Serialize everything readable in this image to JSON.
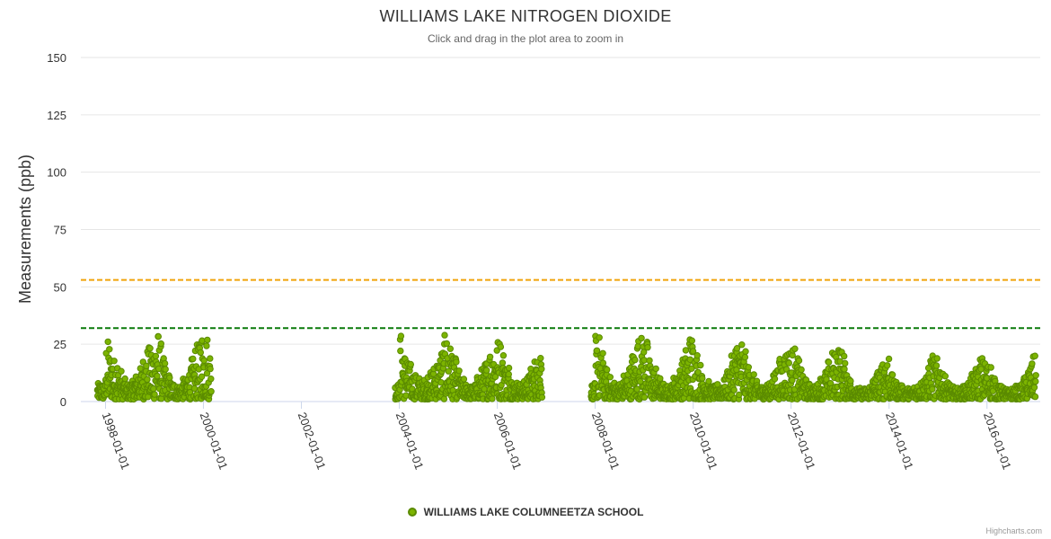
{
  "chart_data": {
    "type": "scatter",
    "title": "WILLIAMS LAKE NITROGEN DIOXIDE",
    "subtitle": "Click and drag in the plot area to zoom in",
    "ylabel": "Measurements (ppb)",
    "xlabel": "",
    "ylim": [
      0,
      150
    ],
    "xlim": [
      "1997-07-01",
      "2017-02-01"
    ],
    "y_ticks": [
      0,
      25,
      50,
      75,
      100,
      125,
      150
    ],
    "x_ticks": [
      "1998-01-01",
      "2000-01-01",
      "2002-01-01",
      "2004-01-01",
      "2006-01-01",
      "2008-01-01",
      "2010-01-01",
      "2012-01-01",
      "2014-01-01",
      "2016-01-01"
    ],
    "grid": true,
    "legend_position": "bottom-center",
    "reference_lines": [
      {
        "value": 53,
        "color": "#f0a30a",
        "style": "dashed"
      },
      {
        "value": 32,
        "color": "#0a7a0a",
        "style": "dashed"
      }
    ],
    "series": [
      {
        "name": "WILLIAMS LAKE COLUMNEETZA SCHOOL",
        "color": "#7cb400",
        "stroke": "#5a8a00",
        "segments": [
          {
            "start": "1997-11-01",
            "end": "2000-03-01"
          },
          {
            "start": "2003-12-01",
            "end": "2006-12-01"
          },
          {
            "start": "2007-12-01",
            "end": "2017-01-01"
          }
        ],
        "monthly_peaks": [
          [
            "1998-01",
            27
          ],
          [
            "1998-02",
            22
          ],
          [
            "1998-03",
            19
          ],
          [
            "1998-04",
            14
          ],
          [
            "1998-05",
            10
          ],
          [
            "1998-06",
            8
          ],
          [
            "1998-07",
            9
          ],
          [
            "1998-08",
            12
          ],
          [
            "1998-09",
            15
          ],
          [
            "1998-10",
            20
          ],
          [
            "1998-11",
            24
          ],
          [
            "1998-12",
            26
          ],
          [
            "1999-01",
            31
          ],
          [
            "1999-02",
            26
          ],
          [
            "1999-03",
            19
          ],
          [
            "1999-04",
            12
          ],
          [
            "1999-05",
            9
          ],
          [
            "1999-06",
            7
          ],
          [
            "1999-07",
            8
          ],
          [
            "1999-08",
            10
          ],
          [
            "1999-09",
            14
          ],
          [
            "1999-10",
            19
          ],
          [
            "1999-11",
            25
          ],
          [
            "1999-12",
            32
          ],
          [
            "2000-01",
            30
          ],
          [
            "2000-02",
            24
          ],
          [
            "2004-01",
            30
          ],
          [
            "2004-02",
            22
          ],
          [
            "2004-03",
            17
          ],
          [
            "2004-04",
            13
          ],
          [
            "2004-05",
            11
          ],
          [
            "2004-06",
            9
          ],
          [
            "2004-07",
            10
          ],
          [
            "2004-08",
            13
          ],
          [
            "2004-09",
            16
          ],
          [
            "2004-10",
            19
          ],
          [
            "2004-11",
            24
          ],
          [
            "2004-12",
            29
          ],
          [
            "2005-01",
            25
          ],
          [
            "2005-02",
            19
          ],
          [
            "2005-03",
            14
          ],
          [
            "2005-04",
            10
          ],
          [
            "2005-05",
            8
          ],
          [
            "2005-06",
            7
          ],
          [
            "2005-07",
            8
          ],
          [
            "2005-08",
            11
          ],
          [
            "2005-09",
            15
          ],
          [
            "2005-10",
            19
          ],
          [
            "2005-11",
            24
          ],
          [
            "2005-12",
            26
          ],
          [
            "2006-01",
            28
          ],
          [
            "2006-02",
            23
          ],
          [
            "2006-03",
            17
          ],
          [
            "2006-04",
            12
          ],
          [
            "2006-05",
            9
          ],
          [
            "2006-06",
            8
          ],
          [
            "2006-07",
            9
          ],
          [
            "2006-08",
            12
          ],
          [
            "2006-09",
            15
          ],
          [
            "2006-10",
            19
          ],
          [
            "2006-11",
            27
          ],
          [
            "2006-12",
            22
          ],
          [
            "2008-01",
            30
          ],
          [
            "2008-02",
            22
          ],
          [
            "2008-03",
            15
          ],
          [
            "2008-04",
            11
          ],
          [
            "2008-05",
            9
          ],
          [
            "2008-06",
            8
          ],
          [
            "2008-07",
            9
          ],
          [
            "2008-08",
            12
          ],
          [
            "2008-09",
            16
          ],
          [
            "2008-10",
            22
          ],
          [
            "2008-11",
            29
          ],
          [
            "2008-12",
            29
          ],
          [
            "2009-01",
            27
          ],
          [
            "2009-02",
            21
          ],
          [
            "2009-03",
            15
          ],
          [
            "2009-04",
            11
          ],
          [
            "2009-05",
            8
          ],
          [
            "2009-06",
            7
          ],
          [
            "2009-07",
            8
          ],
          [
            "2009-08",
            11
          ],
          [
            "2009-09",
            15
          ],
          [
            "2009-10",
            19
          ],
          [
            "2009-11",
            24
          ],
          [
            "2009-12",
            30
          ],
          [
            "2010-01",
            23
          ],
          [
            "2010-02",
            17
          ],
          [
            "2010-03",
            12
          ],
          [
            "2010-04",
            9
          ],
          [
            "2010-05",
            7
          ],
          [
            "2010-06",
            7
          ],
          [
            "2010-07",
            8
          ],
          [
            "2010-08",
            10
          ],
          [
            "2010-09",
            14
          ],
          [
            "2010-10",
            20
          ],
          [
            "2010-11",
            27
          ],
          [
            "2010-12",
            28
          ],
          [
            "2011-01",
            22
          ],
          [
            "2011-02",
            16
          ],
          [
            "2011-03",
            12
          ],
          [
            "2011-04",
            9
          ],
          [
            "2011-05",
            7
          ],
          [
            "2011-06",
            7
          ],
          [
            "2011-07",
            8
          ],
          [
            "2011-08",
            12
          ],
          [
            "2011-09",
            16
          ],
          [
            "2011-10",
            19
          ],
          [
            "2011-11",
            23
          ],
          [
            "2011-12",
            24
          ],
          [
            "2012-01",
            24
          ],
          [
            "2012-02",
            19
          ],
          [
            "2012-03",
            14
          ],
          [
            "2012-04",
            10
          ],
          [
            "2012-05",
            8
          ],
          [
            "2012-06",
            7
          ],
          [
            "2012-07",
            8
          ],
          [
            "2012-08",
            11
          ],
          [
            "2012-09",
            14
          ],
          [
            "2012-10",
            18
          ],
          [
            "2012-11",
            22
          ],
          [
            "2012-12",
            26
          ],
          [
            "2013-01",
            23
          ],
          [
            "2013-02",
            17
          ],
          [
            "2013-03",
            11
          ],
          [
            "2013-04",
            8
          ],
          [
            "2013-05",
            6
          ],
          [
            "2013-06",
            5
          ],
          [
            "2013-07",
            6
          ],
          [
            "2013-08",
            8
          ],
          [
            "2013-09",
            11
          ],
          [
            "2013-10",
            14
          ],
          [
            "2013-11",
            19
          ],
          [
            "2013-12",
            23
          ],
          [
            "2014-01",
            12
          ],
          [
            "2014-02",
            9
          ],
          [
            "2014-03",
            8
          ],
          [
            "2014-04",
            7
          ],
          [
            "2014-05",
            6
          ],
          [
            "2014-06",
            6
          ],
          [
            "2014-07",
            7
          ],
          [
            "2014-08",
            9
          ],
          [
            "2014-09",
            11
          ],
          [
            "2014-10",
            15
          ],
          [
            "2014-11",
            21
          ],
          [
            "2014-12",
            19
          ],
          [
            "2015-01",
            17
          ],
          [
            "2015-02",
            12
          ],
          [
            "2015-03",
            9
          ],
          [
            "2015-04",
            7
          ],
          [
            "2015-05",
            6
          ],
          [
            "2015-06",
            6
          ],
          [
            "2015-07",
            7
          ],
          [
            "2015-08",
            9
          ],
          [
            "2015-09",
            12
          ],
          [
            "2015-10",
            15
          ],
          [
            "2015-11",
            20
          ],
          [
            "2015-12",
            18
          ],
          [
            "2016-01",
            17
          ],
          [
            "2016-02",
            13
          ],
          [
            "2016-03",
            9
          ],
          [
            "2016-04",
            7
          ],
          [
            "2016-05",
            6
          ],
          [
            "2016-06",
            5
          ],
          [
            "2016-07",
            6
          ],
          [
            "2016-08",
            7
          ],
          [
            "2016-09",
            8
          ],
          [
            "2016-10",
            11
          ],
          [
            "2016-11",
            16
          ],
          [
            "2016-12",
            20
          ]
        ]
      }
    ]
  },
  "credits": "Highcharts.com"
}
